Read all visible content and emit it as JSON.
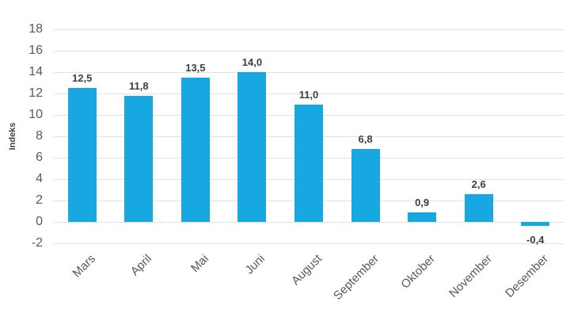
{
  "chart_data": {
    "type": "bar",
    "title": "",
    "xlabel": "",
    "ylabel": "Indeks",
    "categories": [
      "Mars",
      "April",
      "Mai",
      "Juni",
      "August",
      "September",
      "Oktober",
      "November",
      "Desember"
    ],
    "values": [
      12.5,
      11.8,
      13.5,
      14.0,
      11.0,
      6.8,
      0.9,
      2.6,
      -0.4
    ],
    "value_labels": [
      "12,5",
      "11,8",
      "13,5",
      "14,0",
      "11,0",
      "6,8",
      "0,9",
      "2,6",
      "-0,4"
    ],
    "ylim": [
      -2,
      18
    ],
    "ytick_step": 2,
    "ytick_labels": [
      "18",
      "16",
      "14",
      "12",
      "10",
      "8",
      "6",
      "4",
      "2",
      "0",
      "-2"
    ],
    "grid": true,
    "legend_position": "none",
    "decimal_separator": ",",
    "colors": {
      "bar": "#18a8e1",
      "grid": "#e2e2e2",
      "axis_text": "#595959",
      "value_label_text": "#3f3f3f",
      "background": "#ffffff"
    }
  }
}
